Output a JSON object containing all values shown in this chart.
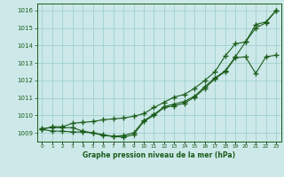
{
  "xlabel": "Graphe pression niveau de la mer (hPa)",
  "x": [
    0,
    1,
    2,
    3,
    4,
    5,
    6,
    7,
    8,
    9,
    10,
    11,
    12,
    13,
    14,
    15,
    16,
    17,
    18,
    19,
    20,
    21,
    22,
    23
  ],
  "line1": [
    1009.2,
    1009.35,
    1009.35,
    1009.55,
    1009.6,
    1009.65,
    1009.75,
    1009.8,
    1009.85,
    1009.95,
    1010.1,
    1010.45,
    1010.75,
    1011.05,
    1011.2,
    1011.55,
    1012.0,
    1012.5,
    1013.4,
    1014.1,
    1014.2,
    1015.2,
    1015.35,
    1016.0
  ],
  "line2": [
    1009.25,
    1009.3,
    1009.3,
    1009.3,
    1009.1,
    1009.0,
    1008.85,
    1008.8,
    1008.85,
    1009.0,
    1009.7,
    1010.05,
    1010.5,
    1010.65,
    1010.8,
    1011.1,
    1011.65,
    1012.15,
    1012.55,
    1013.35,
    1014.2,
    1015.0,
    1015.3,
    1016.0
  ],
  "line3": [
    1009.2,
    1009.1,
    1009.1,
    1009.05,
    1009.05,
    1009.0,
    1008.9,
    1008.8,
    1008.75,
    1008.9,
    1009.65,
    1010.0,
    1010.45,
    1010.55,
    1010.7,
    1011.05,
    1011.55,
    1012.1,
    1012.5,
    1013.3,
    1013.35,
    1012.4,
    1013.35,
    1013.45
  ],
  "bg_color": "#cce8e8",
  "grid_color": "#99cccc",
  "line_color": "#1a5c1a",
  "text_color": "#1a5c1a",
  "ylabel_ticks": [
    1009,
    1010,
    1011,
    1012,
    1013,
    1014,
    1015,
    1016
  ],
  "ylim": [
    1008.5,
    1016.4
  ],
  "xlim": [
    -0.5,
    23.5
  ]
}
